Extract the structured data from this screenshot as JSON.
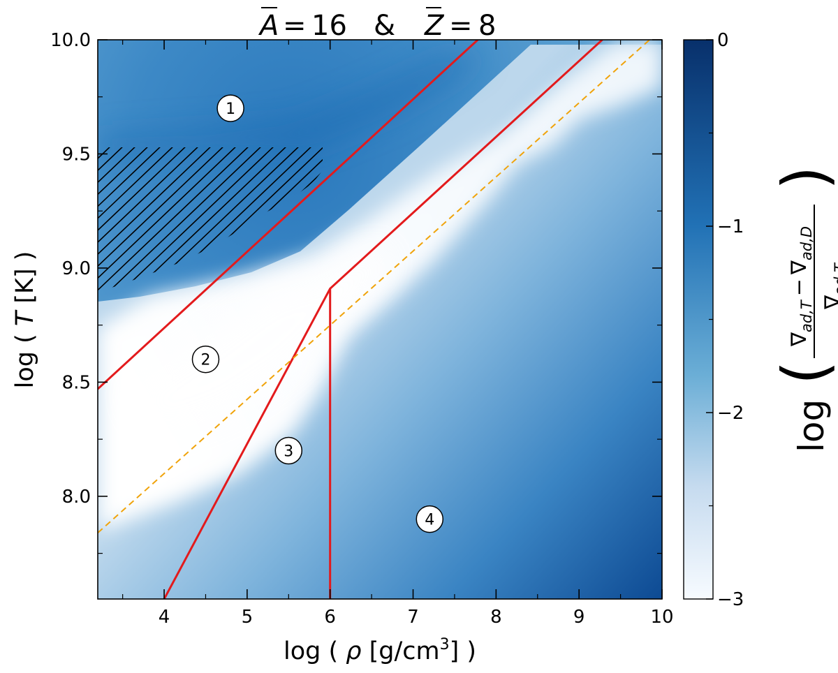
{
  "chart_data": {
    "type": "heatmap",
    "title": {
      "a_symbol": "A",
      "a_value": "16",
      "joiner": "&",
      "z_symbol": "Z",
      "z_value": "8"
    },
    "xlabel": {
      "prefix": "log ( ",
      "symbol": "ρ",
      "unit": " [g/cm",
      "exponent": "3",
      "suffix": "] )"
    },
    "ylabel": {
      "prefix": "log ( ",
      "symbol": "T",
      "suffix": " [K] )"
    },
    "xlim": [
      3.2,
      10.0
    ],
    "ylim": [
      7.55,
      10.0
    ],
    "xticks": [
      4,
      5,
      6,
      7,
      8,
      9,
      10
    ],
    "xtick_labels": [
      "4",
      "5",
      "6",
      "7",
      "8",
      "9",
      "10"
    ],
    "yticks": [
      8.0,
      8.5,
      9.0,
      9.5,
      10.0
    ],
    "ytick_labels": [
      "8.0",
      "8.5",
      "9.0",
      "9.5",
      "10.0"
    ],
    "colorbar": {
      "range": [
        -3,
        0
      ],
      "ticks": [
        0,
        -1,
        -2,
        -3
      ],
      "tick_labels": [
        "0",
        "−1",
        "−2",
        "−3"
      ],
      "label_prefix": "log",
      "label_numerator_left": "∇",
      "label_numerator_left_sub": "ad,T",
      "label_numerator_op": "−",
      "label_numerator_right": "∇",
      "label_numerator_right_sub": "ad,D",
      "label_denominator": "∇",
      "label_denominator_sub": "ad,T",
      "colormap": [
        "#f7fbff",
        "#c6dbef",
        "#6baed6",
        "#2171b5",
        "#08306b"
      ]
    },
    "boundary_lines": [
      {
        "style": "solid",
        "color": "#e31a1c",
        "points": [
          [
            3.2,
            8.47
          ],
          [
            7.78,
            10.0
          ]
        ]
      },
      {
        "style": "solid",
        "color": "#e31a1c",
        "points": [
          [
            4.0,
            7.55
          ],
          [
            6.0,
            8.91
          ],
          [
            9.28,
            10.0
          ]
        ]
      },
      {
        "style": "solid",
        "color": "#e31a1c",
        "points": [
          [
            6.0,
            7.55
          ],
          [
            6.0,
            8.91
          ]
        ]
      },
      {
        "style": "dashed",
        "color": "#f0a30a",
        "points": [
          [
            3.2,
            7.84
          ],
          [
            9.85,
            10.0
          ]
        ]
      }
    ],
    "hatched_region": {
      "x": [
        3.2,
        5.93
      ],
      "y": [
        8.88,
        9.53
      ]
    },
    "region_markers": [
      {
        "label": "1",
        "x": 4.8,
        "y": 9.7
      },
      {
        "label": "2",
        "x": 4.5,
        "y": 8.6
      },
      {
        "label": "3",
        "x": 5.5,
        "y": 8.2
      },
      {
        "label": "4",
        "x": 7.2,
        "y": 7.9
      }
    ]
  }
}
